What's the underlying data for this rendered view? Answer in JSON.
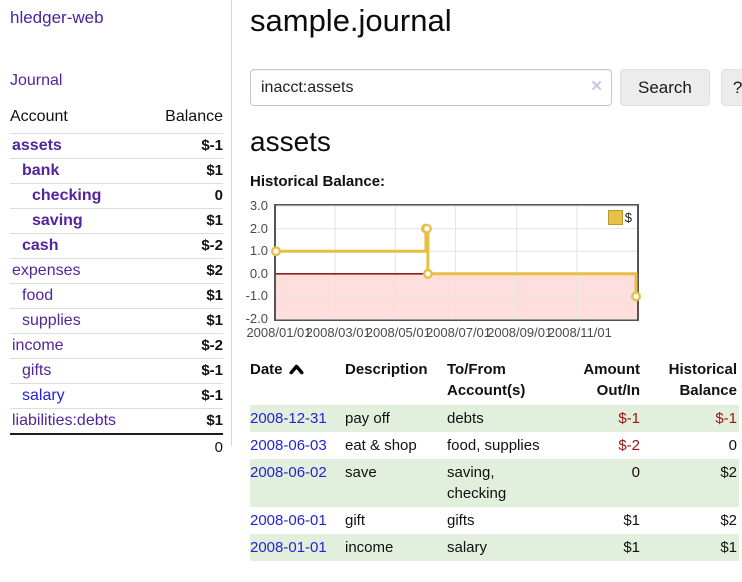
{
  "window": {
    "brand": "hledger-web",
    "title": "sample.journal"
  },
  "sidebar": {
    "journal_link": "Journal",
    "account_header": "Account",
    "balance_header": "Balance",
    "accounts": [
      {
        "name": "assets",
        "depth": 1,
        "bold": true,
        "balance": "$-1",
        "neg": "strong"
      },
      {
        "name": "bank",
        "depth": 2,
        "bold": true,
        "balance": "$1"
      },
      {
        "name": "checking",
        "depth": 3,
        "bold": true,
        "balance": "0"
      },
      {
        "name": "saving",
        "depth": 3,
        "bold": true,
        "balance": "$1"
      },
      {
        "name": "cash",
        "depth": 2,
        "bold": true,
        "balance": "$-2",
        "neg": "strong"
      },
      {
        "name": "expenses",
        "depth": 1,
        "bold": false,
        "balance": "$2"
      },
      {
        "name": "food",
        "depth": 2,
        "bold": false,
        "balance": "$1"
      },
      {
        "name": "supplies",
        "depth": 2,
        "bold": false,
        "balance": "$1"
      },
      {
        "name": "income",
        "depth": 1,
        "bold": false,
        "balance": "$-2",
        "neg": "muted"
      },
      {
        "name": "gifts",
        "depth": 2,
        "bold": false,
        "balance": "$-1",
        "neg": "muted"
      },
      {
        "name": "salary",
        "depth": 2,
        "bold": false,
        "balance": "$-1",
        "neg": "muted",
        "link_color": "blue"
      },
      {
        "name": "liabilities:debts",
        "depth": 1,
        "bold": false,
        "balance": "$1"
      }
    ],
    "total": "0"
  },
  "search": {
    "value": "inacct:assets",
    "clear_icon": "✕",
    "button_label": "Search",
    "help_label": "?"
  },
  "account_page": {
    "heading": "assets",
    "chart_label": "Historical Balance:"
  },
  "chart_data": {
    "type": "line",
    "title": "Historical Balance:",
    "series": [
      {
        "name": "$",
        "step": true,
        "points": [
          [
            "2008-01-01",
            1
          ],
          [
            "2008-06-01",
            2
          ],
          [
            "2008-06-02",
            2
          ],
          [
            "2008-06-03",
            0
          ],
          [
            "2008-12-31",
            -1
          ]
        ]
      }
    ],
    "x_range": [
      "2008-01-01",
      "2009-01-01"
    ],
    "x_ticks": [
      {
        "date": "2008-01-01",
        "label": "2008/01/01"
      },
      {
        "date": "2008-03-01",
        "label": "2008/03/01"
      },
      {
        "date": "2008-05-01",
        "label": "2008/05/01"
      },
      {
        "date": "2008-07-01",
        "label": "2008/07/01"
      },
      {
        "date": "2008-09-01",
        "label": "2008/09/01"
      },
      {
        "date": "2008-11-01",
        "label": "2008/11/01"
      }
    ],
    "y_ticks": [
      "3.0",
      "2.0",
      "1.0",
      "0.0",
      "-1.0",
      "-2.0"
    ],
    "ylim": [
      -2,
      3
    ],
    "grid": true,
    "legend": {
      "label": "$",
      "position": "top-right"
    },
    "styles": {
      "line_color": "#e7bf45",
      "point_fill": "#ffffff",
      "negative_fill": "#ffdede",
      "zero_line": "#8b2121",
      "gridline": "#e4e4e4",
      "border": "#545454"
    }
  },
  "register": {
    "headers": [
      {
        "label": "Date",
        "sorted": true,
        "align": "left"
      },
      {
        "label": "Description",
        "align": "left"
      },
      {
        "label": "To/From\nAccount(s)",
        "align": "left"
      },
      {
        "label": "Amount\nOut/In",
        "align": "right"
      },
      {
        "label": "Historical\nBalance",
        "align": "right"
      }
    ],
    "rows": [
      {
        "date": "2008-12-31",
        "description": "pay off",
        "accounts": "debts",
        "amount": "$-1",
        "balance": "$-1"
      },
      {
        "date": "2008-06-03",
        "description": "eat & shop",
        "accounts": "food, supplies",
        "amount": "$-2",
        "balance": "0"
      },
      {
        "date": "2008-06-02",
        "description": "save",
        "accounts": "saving,\nchecking",
        "amount": "0",
        "balance": "$2"
      },
      {
        "date": "2008-06-01",
        "description": "gift",
        "accounts": "gifts",
        "amount": "$1",
        "balance": "$2"
      },
      {
        "date": "2008-01-01",
        "description": "income",
        "accounts": "salary",
        "amount": "$1",
        "balance": "$1"
      }
    ]
  },
  "colors": {
    "link_purple": "#54249c",
    "link_blue": "#2323d6",
    "negative_strong": "#a01313",
    "negative_muted": "#c2747d",
    "row_green": "#e1efdc",
    "chart_line": "#e7bf45",
    "chart_negative_fill": "#ffdede",
    "chart_zero_line": "#8b2121"
  }
}
